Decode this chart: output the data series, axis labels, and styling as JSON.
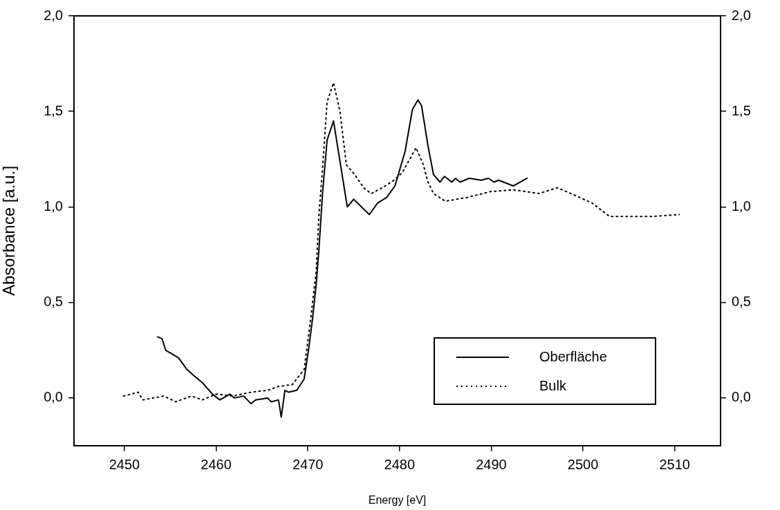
{
  "chart_data": {
    "type": "line",
    "xlabel": "Energy [eV]",
    "ylabel": "Absorbance [a.u.]",
    "xlim": [
      2444.5,
      2515
    ],
    "xticks": [
      2450,
      2460,
      2470,
      2480,
      2490,
      2500,
      2510
    ],
    "ylim": [
      -0.25,
      2.0
    ],
    "yticks": [
      {
        "value": 0,
        "label": "0,0"
      },
      {
        "value": 0.5,
        "label": "0,5"
      },
      {
        "value": 1,
        "label": "1,0"
      },
      {
        "value": 1.5,
        "label": "1,5"
      },
      {
        "value": 2,
        "label": "2,0"
      }
    ],
    "y2lim": [
      -0.25,
      2.0
    ],
    "y2ticks": [
      {
        "value": 0,
        "label": "0,0"
      },
      {
        "value": 0.5,
        "label": "0,5"
      },
      {
        "value": 1,
        "label": "1,0"
      },
      {
        "value": 1.5,
        "label": "1,5"
      },
      {
        "value": 2,
        "label": "2,0"
      }
    ],
    "grid": false,
    "legend": "bottom right",
    "marker": "none",
    "series": [
      {
        "name": "Oberfläche",
        "color": "#000000",
        "line_style": "solid",
        "x": [
          2453.6,
          2454.1,
          2454.5,
          2455.9,
          2456.8,
          2457.5,
          2458.5,
          2459.6,
          2460.4,
          2461.5,
          2462.0,
          2463.0,
          2463.8,
          2464.3,
          2465.6,
          2466.0,
          2466.8,
          2467.1,
          2467.5,
          2467.9,
          2468.8,
          2469.6,
          2470.1,
          2470.5,
          2470.9,
          2471.2,
          2471.6,
          2472.1,
          2472.8,
          2474.3,
          2475.0,
          2476.7,
          2477.6,
          2478.6,
          2479.5,
          2480.6,
          2481.4,
          2482.0,
          2482.4,
          2483.1,
          2483.7,
          2484.4,
          2484.9,
          2485.7,
          2486.1,
          2486.6,
          2487.6,
          2488.9,
          2489.7,
          2490.3,
          2490.8,
          2492.4,
          2493.9
        ],
        "values": [
          0.32,
          0.31,
          0.25,
          0.21,
          0.15,
          0.12,
          0.08,
          0.02,
          -0.01,
          0.02,
          0.0,
          0.01,
          -0.03,
          -0.01,
          0.0,
          -0.02,
          -0.01,
          -0.1,
          0.04,
          0.03,
          0.04,
          0.1,
          0.26,
          0.41,
          0.59,
          0.77,
          1.07,
          1.35,
          1.45,
          1.0,
          1.04,
          0.96,
          1.02,
          1.05,
          1.11,
          1.29,
          1.51,
          1.56,
          1.53,
          1.32,
          1.17,
          1.13,
          1.16,
          1.13,
          1.15,
          1.13,
          1.15,
          1.14,
          1.15,
          1.13,
          1.14,
          1.11,
          1.15
        ]
      },
      {
        "name": "Bulk",
        "color": "#000000",
        "line_style": "dotted",
        "x": [
          2449.9,
          2451.5,
          2452.0,
          2454.3,
          2455.6,
          2457.3,
          2458.5,
          2460.0,
          2461.8,
          2463.8,
          2465.6,
          2466.8,
          2468.3,
          2469.6,
          2470.3,
          2470.9,
          2471.2,
          2471.6,
          2472.1,
          2472.8,
          2473.5,
          2474.2,
          2475.1,
          2476.1,
          2476.9,
          2478.1,
          2479.4,
          2480.3,
          2481.8,
          2482.6,
          2483.1,
          2483.7,
          2485.0,
          2487.4,
          2489.9,
          2492.4,
          2495.2,
          2497.2,
          2498.7,
          2501.0,
          2502.9,
          2505.2,
          2507.5,
          2510.5
        ],
        "values": [
          0.01,
          0.03,
          -0.01,
          0.01,
          -0.02,
          0.01,
          -0.01,
          0.02,
          0.01,
          0.03,
          0.04,
          0.06,
          0.07,
          0.15,
          0.41,
          0.66,
          0.95,
          1.2,
          1.55,
          1.65,
          1.5,
          1.22,
          1.17,
          1.1,
          1.07,
          1.1,
          1.14,
          1.18,
          1.31,
          1.22,
          1.13,
          1.07,
          1.03,
          1.05,
          1.08,
          1.09,
          1.07,
          1.1,
          1.07,
          1.02,
          0.95,
          0.95,
          0.95,
          0.96
        ]
      }
    ]
  }
}
